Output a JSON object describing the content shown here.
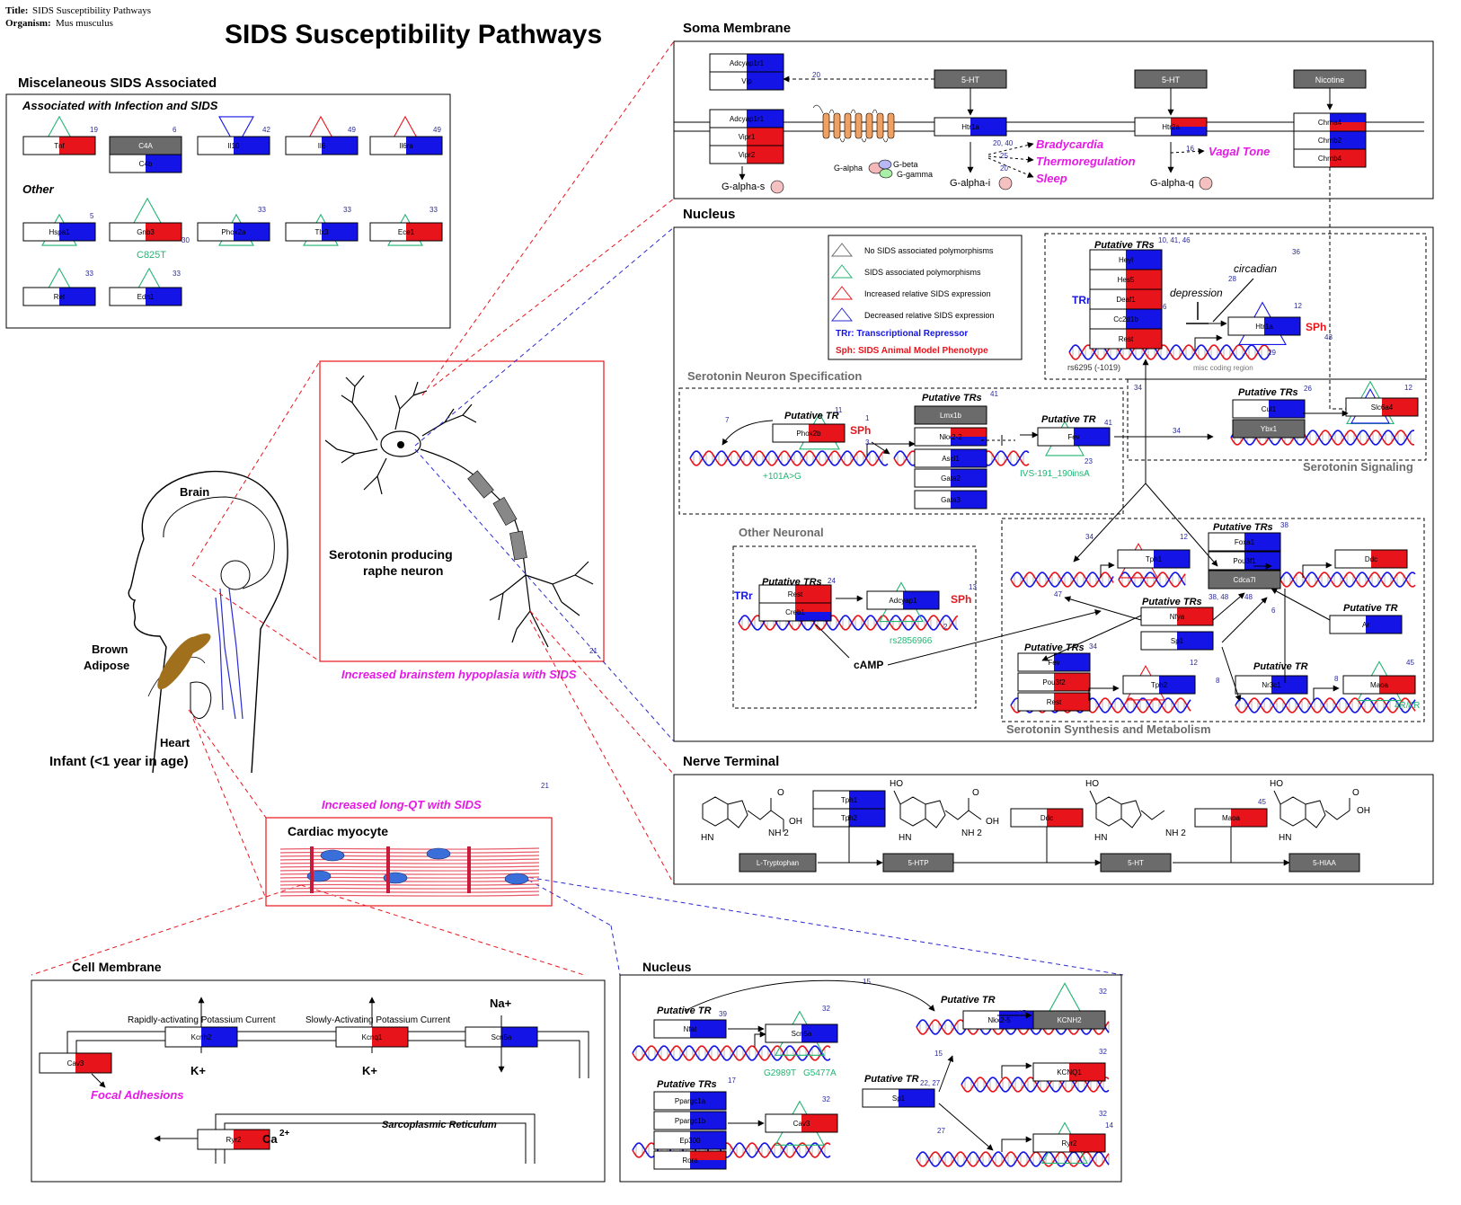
{
  "header": {
    "title_label": "Title:",
    "title_value": "SIDS Susceptibility Pathways",
    "organism_label": "Organism:",
    "organism_value": "Mus musculus",
    "main_title": "SIDS Susceptibility Pathways"
  },
  "colors": {
    "red": "#e8141c",
    "blue": "#1414e6",
    "gray": "#6b6b6b",
    "green": "#22b573",
    "magenta": "#e619e6",
    "navy": "#2b2b9e",
    "dashred": "#e8141c",
    "dashblue": "#2a2ad0"
  },
  "misc": {
    "heading": "Miscelaneous SIDS Associated",
    "sub_infection": "Associated with Infection and SIDS",
    "sub_other": "Other",
    "variant_gnb3": "C825T",
    "genes": [
      {
        "label": "Tnf",
        "ref": "19"
      },
      {
        "label": "C4A",
        "ref": "6"
      },
      {
        "label": "C4b",
        "ref": ""
      },
      {
        "label": "Il10",
        "ref": "42"
      },
      {
        "label": "Il6",
        "ref": "49"
      },
      {
        "label": "Il6ra",
        "ref": "49"
      },
      {
        "label": "Hspa1",
        "ref": "5"
      },
      {
        "label": "Gnb3",
        "ref": "30"
      },
      {
        "label": "Phox2a",
        "ref": "33"
      },
      {
        "label": "Tlx3",
        "ref": "33"
      },
      {
        "label": "Ece1",
        "ref": "33"
      },
      {
        "label": "Ret",
        "ref": "33"
      },
      {
        "label": "Edn1",
        "ref": "33"
      }
    ]
  },
  "body": {
    "brain": "Brain",
    "brown": "Brown",
    "adipose": "Adipose",
    "heart": "Heart",
    "infant": "Infant (<1 year in age)"
  },
  "neuron": {
    "label1": "Serotonin producing",
    "label2": "raphe neuron",
    "caption": "Increased brainstem hypoplasia with SIDS",
    "ref": "21"
  },
  "soma": {
    "heading": "Soma Membrane",
    "genes": [
      "Adcyap1r1",
      "Vip",
      "Adcyap1r1",
      "Vipr1",
      "Vipr2",
      "Htr1a",
      "Htr2a",
      "Chrna4",
      "Chrnb2",
      "Chrnb4"
    ],
    "ligand_5ht_a": "5-HT",
    "ligand_5ht_b": "5-HT",
    "ligand_nicotine": "Nicotine",
    "g_alpha_s": "G-alpha-s",
    "g_alpha": "G-alpha",
    "g_beta": "G-beta",
    "g_gamma": "G-gamma",
    "g_alpha_i": "G-alpha-i",
    "g_alpha_q": "G-alpha-q",
    "pheno_bradycardia": "Bradycardia",
    "pheno_thermo": "Thermoregulation",
    "pheno_sleep": "Sleep",
    "pheno_vagal": "Vagal Tone",
    "ref_20a": "20",
    "ref_20_40": "20, 40",
    "ref_25": "25",
    "ref_20b": "20",
    "ref_16": "16"
  },
  "legend": {
    "none": "No SIDS associated polymorphisms",
    "poly": "SIDS associated polymorphisms",
    "increased": "Increased relative SIDS expression",
    "decreased": "Decreased relative SIDS expression",
    "trr": "TRr: Transcriptional Repressor",
    "sph": "Sph: SIDS Animal Model Phenotype"
  },
  "nucleus": {
    "heading": "Nucleus",
    "putative_trs": "Putative TRs",
    "putative_tr": "Putative TR",
    "trr": "TRr",
    "sph": "SPh",
    "top_genes": [
      "Heyl",
      "Hes5",
      "Deaf1",
      "Cc2d1b",
      "Rest"
    ],
    "top_refs": "10, 41, 46",
    "top_ref6": "6",
    "htr1a": "Htr1a",
    "ref_36": "36",
    "ref_28": "28",
    "ref_12": "12",
    "ref_43": "43",
    "ref_29": "29",
    "ref_34": "34",
    "circadian": "circadian",
    "depression": "depression",
    "rs6295": "rs6295 (-1019)",
    "misc_coding": "misc coding region",
    "spec_heading": "Serotonin Neuron Specification",
    "phox2b": "Phox2b",
    "ref_7": "7",
    "ref_11": "11",
    "ref_1": "1",
    "ref_3": "3",
    "var_101": "+101A>G",
    "spec_genes": [
      "Lmx1b",
      "Nkx2-2",
      "Ascl1",
      "Gata2",
      "Gata3"
    ],
    "spec_ref41": "41",
    "fev": "Fev",
    "ref_41b": "41",
    "ref_23": "23",
    "var_ivs": "IVS-191_190insA",
    "cul1": "Cul1",
    "ybx1": "Ybx1",
    "slc6a4": "Slc6a4",
    "ref_26": "26",
    "ref_12b": "12",
    "sig_heading": "Serotonin Signaling",
    "other_heading": "Other Neuronal",
    "rest2": "Rest",
    "creb1": "Creb1",
    "adcyap1": "Adcyap1",
    "ref_24": "24",
    "ref_13": "13",
    "ref_2": "2",
    "rs2856966": "rs2856966",
    "camp": "cAMP",
    "tph1": "Tph1",
    "ref_34b": "34",
    "ref_34c": "34",
    "ref_12c": "12",
    "foxa1": "Foxa1",
    "pou3f1": "Pou3f1",
    "cdca7l": "Cdca7l",
    "ref_38": "38",
    "ref_38_48": "38, 48",
    "ref_48": "48",
    "ref_47": "47",
    "ddc": "Ddc",
    "nfya": "Nfya",
    "sp1": "Sp1",
    "ref_6b": "6",
    "ar": "Ar",
    "fev2": "Fev",
    "pou3f2": "Pou3f2",
    "rest3": "Rest",
    "ref_34d": "34",
    "tph2": "Tph2",
    "ref_12d": "12",
    "ref_8": "8",
    "nr3c1": "Nr3c1",
    "ref_8b": "8",
    "maoa": "Maoa",
    "ref_45": "45",
    "var_4r": "4R/4R",
    "synth_heading": "Serotonin Synthesis and Metabolism"
  },
  "terminal": {
    "heading": "Nerve Terminal",
    "tph1": "Tph1",
    "tph2": "Tph2",
    "ddc": "Ddc",
    "maoa": "Maoa",
    "ref_45": "45",
    "ltrp": "L-Tryptophan",
    "htp": "5-HTP",
    "ht": "5-HT",
    "hiaa": "5-HIAA",
    "ho": "HO",
    "oh": "OH",
    "o": "O",
    "hn": "HN",
    "nh2": "NH 2"
  },
  "cardio": {
    "caption": "Increased long-QT with SIDS",
    "heading": "Cardiac myocyte",
    "ref": "21"
  },
  "cellmem": {
    "heading": "Cell Membrane",
    "rapid": "Rapidly-activating Potassium Current",
    "slow": "Slowly-Activating Potassium Current",
    "kcnh2": "Kcnh2",
    "kcnq1": "Kcnq1",
    "scn5a": "Scn5a",
    "cav3": "Cav3",
    "ryr2": "Ryr2",
    "kplus": "K+",
    "naplus": "Na+",
    "ca": "Ca",
    "ca_sup": "2+",
    "focal": "Focal Adhesions",
    "sr": "Sarcoplasmic Reticulum"
  },
  "nucleus2": {
    "heading": "Nucleus",
    "putative_tr": "Putative TR",
    "putative_trs": "Putative TRs",
    "nfat": "Nfat",
    "scn5a": "Scn5a",
    "var_a": "G2989T",
    "var_b": "G5477A",
    "ref_39": "39",
    "ref_32": "32",
    "pparg1a": "Ppargc1a",
    "pparg1b": "Ppargc1b",
    "ep300": "Ep300",
    "rora": "Rora",
    "cav3": "Cav3",
    "ref_17": "17",
    "ref_32b": "32",
    "nkx2": "Nkx2-5",
    "kcnh2": "KCNH2",
    "ref_15a": "15",
    "ref_15b": "15",
    "ref_32c": "32",
    "sp1": "Sp1",
    "ref_22_27": "22, 27",
    "ref_15c": "15",
    "kcnq1": "KCNQ1",
    "ref_32d": "32",
    "ref_27": "27",
    "ryr2": "Ryr2",
    "ref_32e": "32",
    "ref_14": "14"
  }
}
